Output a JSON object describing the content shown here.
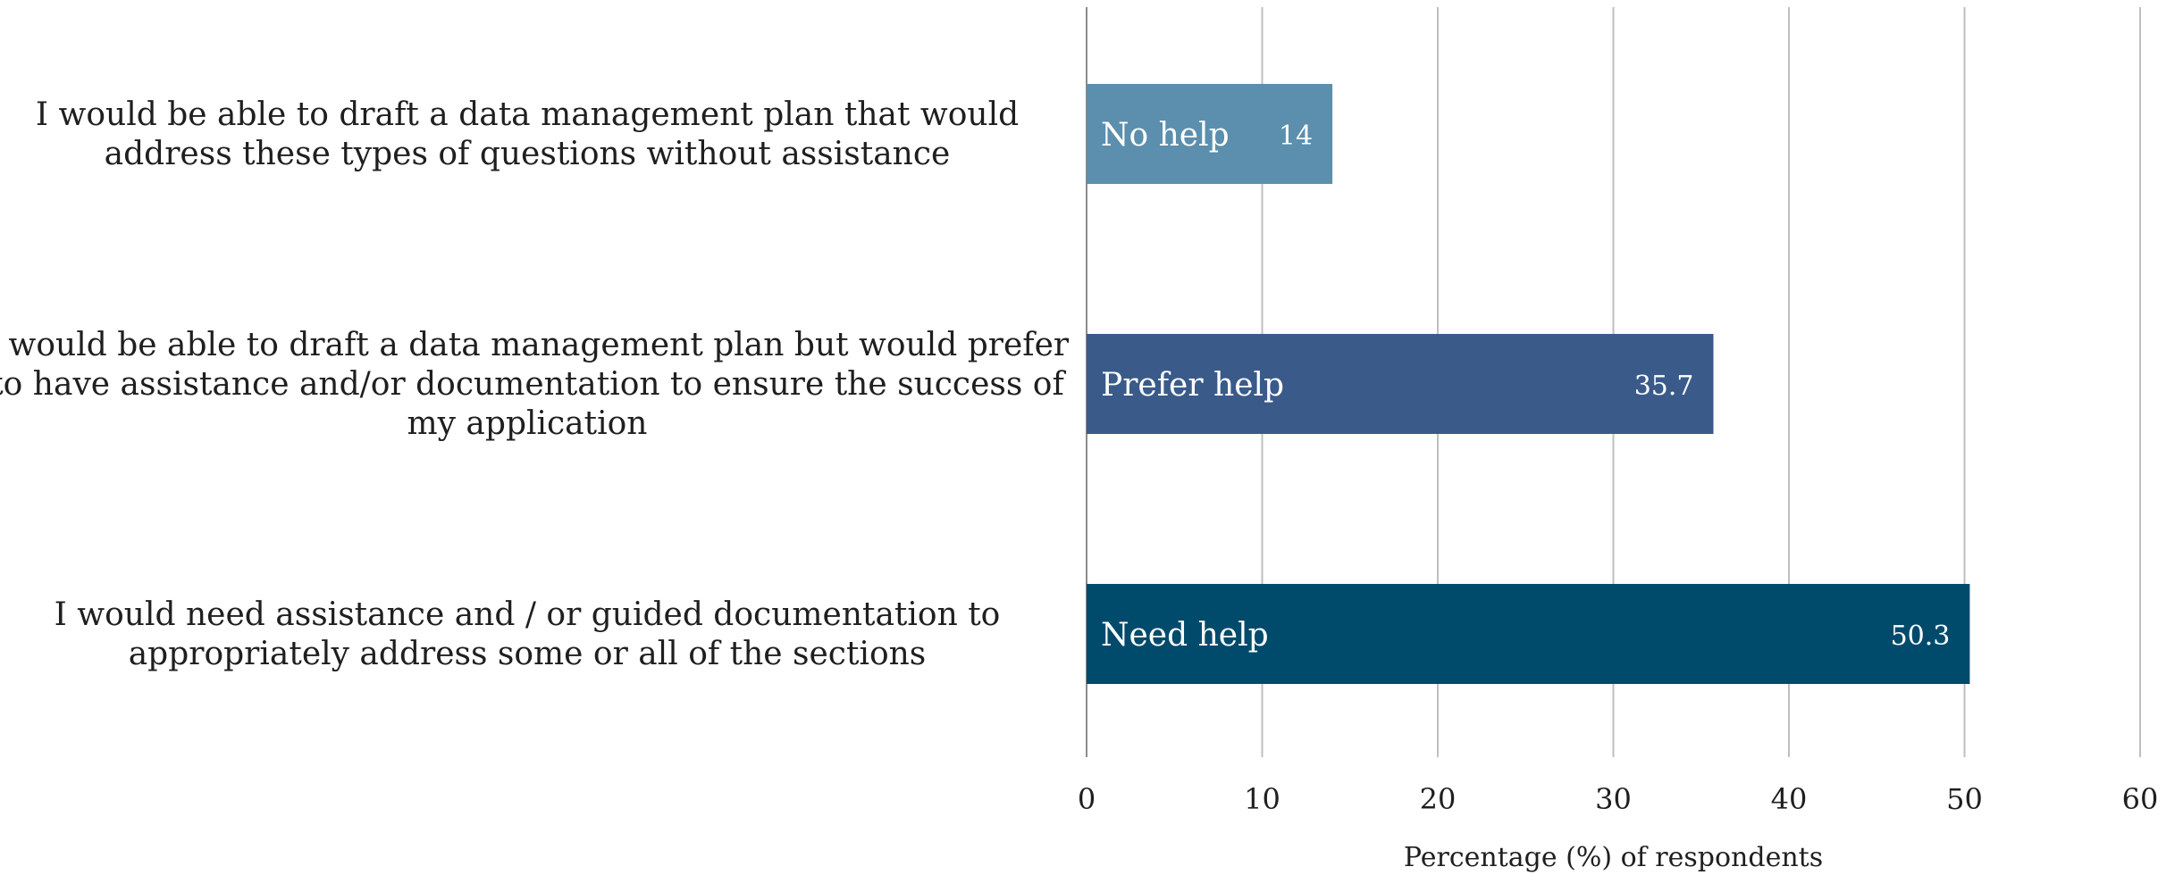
{
  "chart_data": {
    "type": "bar",
    "orientation": "horizontal",
    "categories": [
      "I would be able to draft a data management plan that would address these types of questions without assistance",
      "I would be able to draft a data management plan but would prefer to have assistance and/or documentation to ensure the success of my application",
      "I would need assistance and / or guided documentation to appropriately address some or all of the sections"
    ],
    "category_lines": [
      [
        "I would be able to draft a data management plan that would",
        "address these types of questions without assistance"
      ],
      [
        "I would be able to draft a data management plan but would prefer",
        "to have assistance and/or documentation to ensure the success of",
        "my application"
      ],
      [
        "I would need assistance and / or guided documentation to",
        "appropriately address some or all of the sections"
      ]
    ],
    "bar_labels": [
      "No help",
      "Prefer help",
      "Need help"
    ],
    "values": [
      14,
      35.7,
      50.3
    ],
    "value_labels": [
      "14",
      "35.7",
      "50.3"
    ],
    "colors": [
      "#5b8fad",
      "#3a5a8a",
      "#004a6b"
    ],
    "xlabel": "Percentage (%) of respondents",
    "xlim": [
      0,
      60
    ],
    "xticks": [
      0,
      10,
      20,
      30,
      40,
      50,
      60
    ],
    "grid": true,
    "legend": "none"
  }
}
